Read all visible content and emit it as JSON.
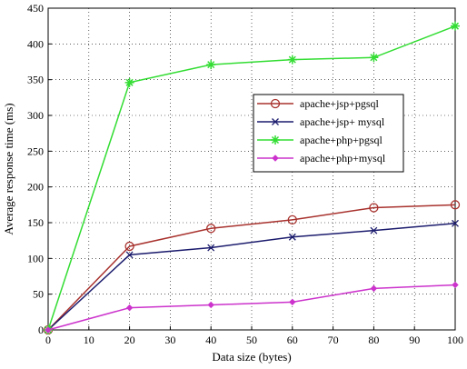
{
  "chart_data": {
    "type": "line",
    "xlabel": "Data size (bytes)",
    "ylabel": "Average response time (ms)",
    "xlim": [
      0,
      100
    ],
    "ylim": [
      0,
      450
    ],
    "xticks": [
      "0",
      "10",
      "20",
      "30",
      "40",
      "50",
      "60",
      "70",
      "80",
      "90",
      "100"
    ],
    "yticks": [
      "0",
      "50",
      "100",
      "150",
      "200",
      "250",
      "300",
      "350",
      "400",
      "450"
    ],
    "grid": true,
    "legend_position": "right-center",
    "x": [
      0,
      20,
      40,
      60,
      80,
      100
    ],
    "series": [
      {
        "name": "apache+jsp+pgsql",
        "values": [
          0,
          117,
          142,
          154,
          171,
          175
        ],
        "color": "#a8322e",
        "marker": "circle"
      },
      {
        "name": "apache+jsp+ mysql",
        "values": [
          0,
          105,
          115,
          130,
          139,
          149
        ],
        "color": "#1c1c6e",
        "marker": "x"
      },
      {
        "name": "apache+php+pgsql",
        "values": [
          0,
          346,
          371,
          378,
          381,
          425
        ],
        "color": "#33dd33",
        "marker": "star"
      },
      {
        "name": "apache+php+mysql",
        "values": [
          0,
          31,
          35,
          39,
          58,
          63
        ],
        "color": "#cc33cc",
        "marker": "diamond"
      }
    ]
  }
}
